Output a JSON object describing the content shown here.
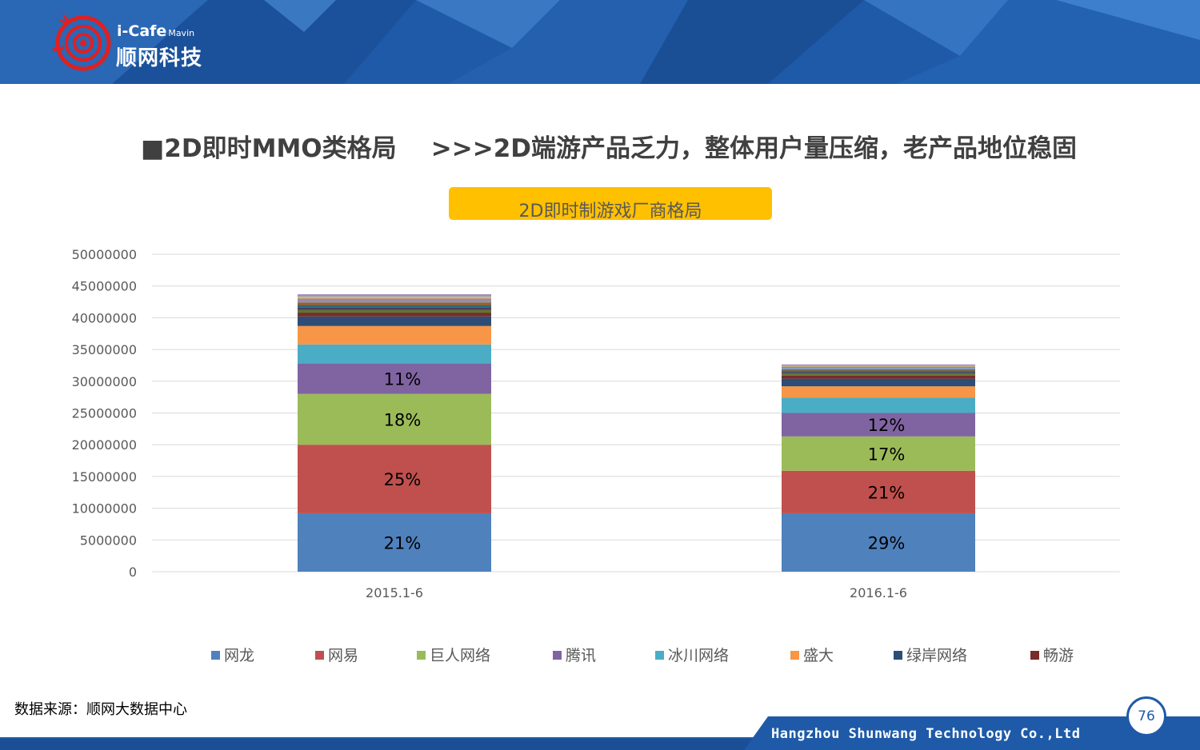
{
  "logo": {
    "brand": "i-Cafe",
    "sub": "Mavin",
    "cn": "顺网科技"
  },
  "slide": {
    "title": "■2D即时MMO类格局    >>>2D端游产品乏力，整体用户量压缩，老产品地位稳固",
    "source": "数据来源：顺网大数据中心",
    "company": "Hangzhou Shunwang Technology Co.,Ltd",
    "page_number": "76"
  },
  "chart_data": {
    "type": "bar",
    "stacked": true,
    "title": "2D即时制游戏厂商格局",
    "categories": [
      "2015.1-6",
      "2016.1-6"
    ],
    "ylim": [
      0,
      50000000
    ],
    "yticks": [
      "0",
      "5000000",
      "10000000",
      "15000000",
      "20000000",
      "25000000",
      "30000000",
      "35000000",
      "40000000",
      "45000000",
      "50000000"
    ],
    "grid": true,
    "legend_position": "bottom",
    "series": [
      {
        "name": "网龙",
        "color": "#4f81bd",
        "values": [
          9200000,
          9200000
        ],
        "labels": [
          "21%",
          "29%"
        ]
      },
      {
        "name": "网易",
        "color": "#c0504d",
        "values": [
          10800000,
          6700000
        ],
        "labels": [
          "25%",
          "21%"
        ]
      },
      {
        "name": "巨人网络",
        "color": "#9bbb59",
        "values": [
          8000000,
          5400000
        ],
        "labels": [
          "18%",
          "17%"
        ]
      },
      {
        "name": "腾讯",
        "color": "#8064a2",
        "values": [
          4800000,
          3700000
        ],
        "labels": [
          "11%",
          "12%"
        ]
      },
      {
        "name": "冰川网络",
        "color": "#4bacc6",
        "values": [
          3000000,
          2400000
        ],
        "labels": [
          "",
          ""
        ]
      },
      {
        "name": "盛大",
        "color": "#f79646",
        "values": [
          2900000,
          1800000
        ],
        "labels": [
          "",
          ""
        ]
      },
      {
        "name": "绿岸网络",
        "color": "#2c4d75",
        "values": [
          1500000,
          1200000
        ],
        "labels": [
          "",
          ""
        ]
      },
      {
        "name": "畅游",
        "color": "#772c2a",
        "values": [
          600000,
          500000
        ],
        "labels": [
          "",
          ""
        ]
      }
    ],
    "other_series_colors": [
      "#5f7530",
      "#4d3b62",
      "#276a7c",
      "#b65708",
      "#729aca",
      "#cd7371",
      "#afc97a",
      "#a08cbe"
    ],
    "other_series_values": [
      [
        450000,
        300000
      ],
      [
        400000,
        250000
      ],
      [
        400000,
        250000
      ],
      [
        350000,
        200000
      ],
      [
        350000,
        200000
      ],
      [
        300000,
        200000
      ],
      [
        300000,
        150000
      ],
      [
        350000,
        200000
      ]
    ]
  }
}
